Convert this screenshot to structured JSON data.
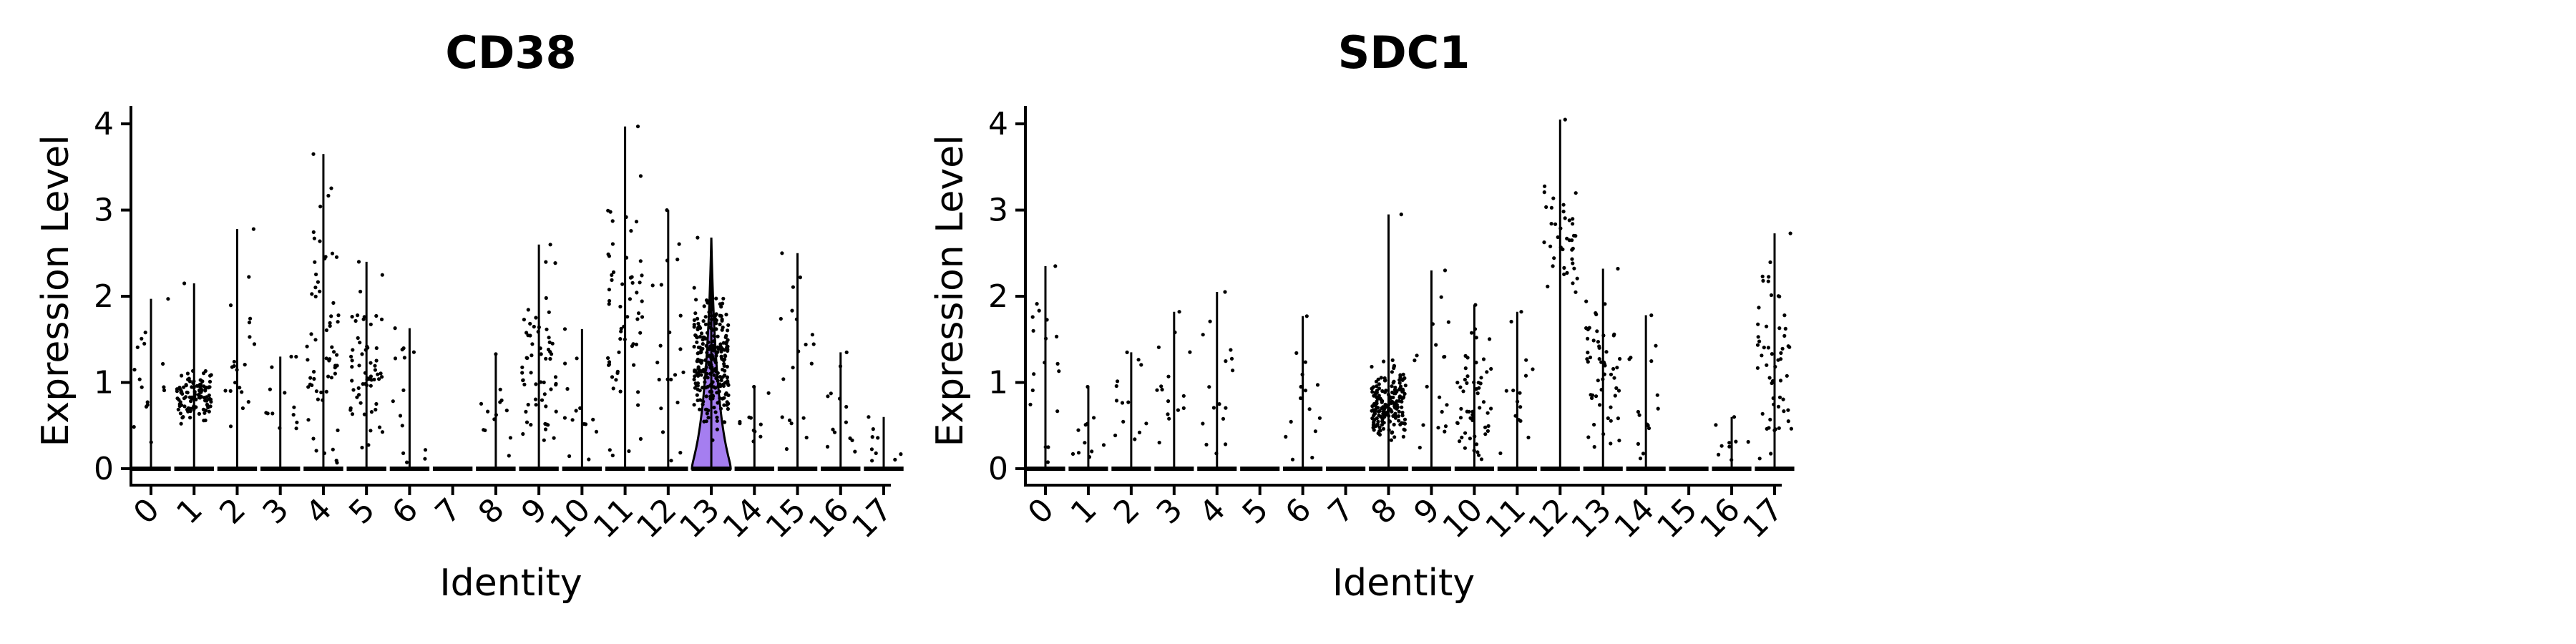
{
  "chart_data": [
    {
      "type": "violin",
      "title": "CD38",
      "xlabel": "Identity",
      "ylabel": "Expression Level",
      "ylim": [
        0,
        4.2
      ],
      "yticks": [
        0,
        1,
        2,
        3,
        4
      ],
      "categories": [
        "0",
        "1",
        "2",
        "3",
        "4",
        "5",
        "6",
        "7",
        "8",
        "9",
        "10",
        "11",
        "12",
        "13",
        "14",
        "15",
        "16",
        "17"
      ],
      "max_values": [
        1.97,
        2.15,
        2.78,
        1.3,
        3.65,
        2.4,
        1.63,
        0,
        1.33,
        2.6,
        1.62,
        3.97,
        3.0,
        2.68,
        0.95,
        2.5,
        1.35,
        0.6
      ],
      "highlight": {
        "category": "13",
        "color": "#a57ef0"
      }
    },
    {
      "type": "violin",
      "title": "SDC1",
      "xlabel": "Identity",
      "ylabel": "Expression Level",
      "ylim": [
        0,
        4.2
      ],
      "yticks": [
        0,
        1,
        2,
        3,
        4
      ],
      "categories": [
        "0",
        "1",
        "2",
        "3",
        "4",
        "5",
        "6",
        "7",
        "8",
        "9",
        "10",
        "11",
        "12",
        "13",
        "14",
        "15",
        "16",
        "17"
      ],
      "max_values": [
        2.35,
        0.95,
        1.35,
        1.82,
        2.05,
        0,
        1.77,
        0,
        2.95,
        2.3,
        1.9,
        1.82,
        4.05,
        2.32,
        1.78,
        0,
        0.6,
        2.73
      ],
      "highlight": null
    }
  ]
}
